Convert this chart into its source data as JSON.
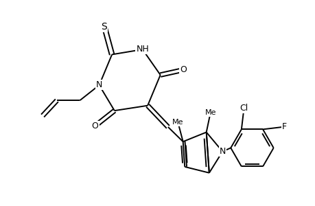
{
  "background_color": "#ffffff",
  "line_color": "#000000",
  "line_width": 1.4,
  "fig_width": 4.6,
  "fig_height": 3.0,
  "dpi": 100,
  "xlim": [
    -0.5,
    5.5
  ],
  "ylim": [
    -1.2,
    2.8
  ]
}
